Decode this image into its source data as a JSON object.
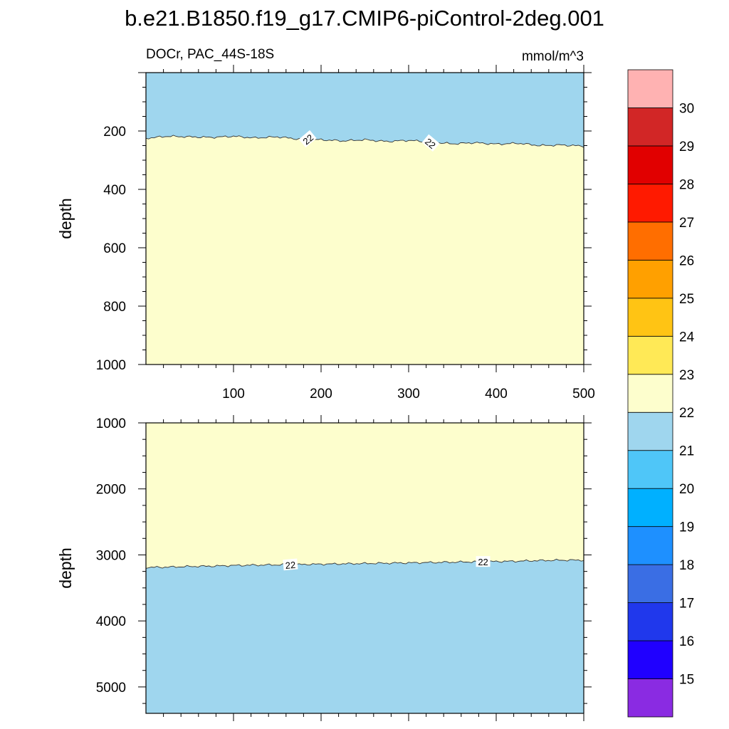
{
  "chart_data": {
    "type": "contour",
    "title": "b.e21.B1850.f19_g17.CMIP6-piControl-2deg.001",
    "subtitle_left": "DOCr, PAC_44S-18S",
    "units": "mmol/m^3",
    "xlim": [
      0,
      500
    ],
    "x_ticks": [
      100,
      200,
      300,
      400,
      500
    ],
    "panels": [
      {
        "name": "upper",
        "ylabel": "depth",
        "ylim": [
          1000,
          0
        ],
        "y_ticks": [
          200,
          400,
          600,
          800,
          1000
        ],
        "show_x_tick_labels": true,
        "shallow_fill": "#9fd6ee",
        "deep_fill": "#fdfecd",
        "contour_value": 22,
        "contour_x": [
          0,
          25,
          50,
          75,
          100,
          125,
          150,
          175,
          200,
          225,
          250,
          275,
          300,
          325,
          350,
          375,
          400,
          425,
          450,
          475,
          500
        ],
        "contour_depth": [
          225,
          218,
          220,
          222,
          218,
          224,
          220,
          228,
          230,
          234,
          230,
          236,
          232,
          238,
          244,
          240,
          245,
          242,
          250,
          248,
          252
        ],
        "contour_labels": [
          {
            "x": 185,
            "depth": 228,
            "text": "22",
            "angle": -40
          },
          {
            "x": 325,
            "depth": 242,
            "text": "22",
            "angle": 40
          }
        ]
      },
      {
        "name": "lower",
        "ylabel": "depth",
        "ylim": [
          1000,
          5400
        ],
        "y_ticks": [
          1000,
          2000,
          3000,
          4000,
          5000
        ],
        "show_x_tick_labels": false,
        "shallow_fill": "#fdfecd",
        "deep_fill": "#9fd6ee",
        "contour_value": 22,
        "contour_x": [
          0,
          25,
          50,
          75,
          100,
          125,
          150,
          175,
          200,
          225,
          250,
          275,
          300,
          325,
          350,
          375,
          400,
          425,
          450,
          475,
          500
        ],
        "contour_depth": [
          3190,
          3185,
          3175,
          3170,
          3160,
          3155,
          3150,
          3145,
          3140,
          3135,
          3130,
          3125,
          3120,
          3115,
          3110,
          3105,
          3100,
          3095,
          3085,
          3080,
          3080
        ],
        "contour_labels": [
          {
            "x": 165,
            "depth": 3150,
            "text": "22",
            "angle": -5
          },
          {
            "x": 385,
            "depth": 3105,
            "text": "22",
            "angle": 0
          }
        ]
      }
    ],
    "colorbar": {
      "levels": [
        "15",
        "16",
        "17",
        "18",
        "19",
        "20",
        "21",
        "22",
        "23",
        "24",
        "25",
        "26",
        "27",
        "28",
        "29",
        "30"
      ],
      "colors": [
        "#8a2be2",
        "#2000ff",
        "#2038ec",
        "#3a6ee4",
        "#1e90ff",
        "#00b0ff",
        "#4fc6f8",
        "#9fd6ee",
        "#fdfecd",
        "#ffe956",
        "#ffc414",
        "#ffa000",
        "#ff6e00",
        "#ff1a00",
        "#e10000",
        "#d22626",
        "#ffb2b2"
      ]
    }
  }
}
